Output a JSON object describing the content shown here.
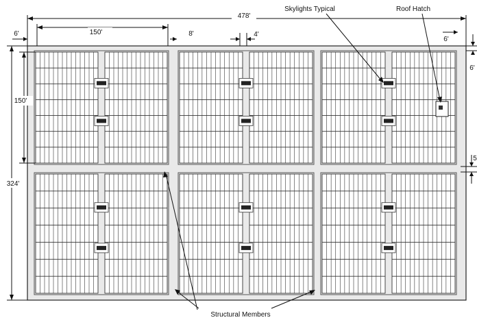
{
  "diagram": {
    "dimensions": {
      "overall_width": "478'",
      "overall_height": "324'",
      "section_width": "150'",
      "section_height": "150'",
      "left_edge": "6'",
      "aisle_width": "8'",
      "skylight_gap": "4'",
      "right_edge": "6'",
      "top_margin_right": "6'",
      "middle_aisle_right": "5"
    },
    "callouts": {
      "skylights": "Skylights Typical",
      "roof_hatch": "Roof Hatch",
      "structural_members": "Structural Members"
    },
    "layout": {
      "rows": 2,
      "columns": 3,
      "panel_columns_per_half": 14,
      "panel_rows_per_section": 7
    }
  }
}
